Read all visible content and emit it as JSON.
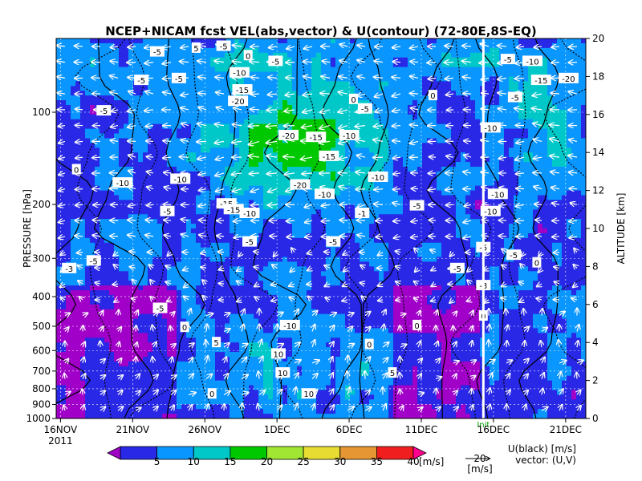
{
  "chart_data": {
    "type": "heatmap",
    "title": "NCEP+NICAM  fcst  VEL(abs,vector) & U(contour)   (72-80E,8S-EQ)",
    "ylabel_left": "PRESSURE [hPa]",
    "ylabel_right": "ALTITUDE [km]",
    "yticks_left": [
      {
        "label": "100",
        "p": 100
      },
      {
        "label": "200",
        "p": 200
      },
      {
        "label": "300",
        "p": 300
      },
      {
        "label": "400",
        "p": 400
      },
      {
        "label": "500",
        "p": 500
      },
      {
        "label": "600",
        "p": 600
      },
      {
        "label": "700",
        "p": 700
      },
      {
        "label": "800",
        "p": 800
      },
      {
        "label": "900",
        "p": 900
      },
      {
        "label": "1000",
        "p": 1000
      }
    ],
    "yticks_right": [
      {
        "label": "20",
        "km": 20
      },
      {
        "label": "18",
        "km": 18
      },
      {
        "label": "16",
        "km": 16
      },
      {
        "label": "14",
        "km": 14
      },
      {
        "label": "12",
        "km": 12
      },
      {
        "label": "10",
        "km": 10
      },
      {
        "label": "8",
        "km": 8
      },
      {
        "label": "6",
        "km": 6
      },
      {
        "label": "4",
        "km": 4
      },
      {
        "label": "2",
        "km": 2
      },
      {
        "label": "0",
        "km": 0
      }
    ],
    "xticks": [
      {
        "label": "16NOV",
        "day": 0
      },
      {
        "label": "21NOV",
        "day": 5
      },
      {
        "label": "26NOV",
        "day": 10
      },
      {
        "label": "1DEC",
        "day": 15
      },
      {
        "label": "6DEC",
        "day": 20
      },
      {
        "label": "11DEC",
        "day": 25
      },
      {
        "label": "16DEC",
        "day": 30
      },
      {
        "label": "21DEC",
        "day": 35
      }
    ],
    "xyear": "2011",
    "xrange_days": [
      -0.3,
      36.4
    ],
    "yrange_km": [
      0,
      20
    ],
    "grid": true,
    "init_marker": {
      "label": "Init",
      "day": 29.3
    },
    "colorbar": {
      "levels": [
        "5",
        "10",
        "15",
        "20",
        "25",
        "30",
        "35",
        "40"
      ],
      "unit": "[m/s]",
      "colors": [
        "#a000c8",
        "#2828e6",
        "#0a96ff",
        "#00c8c8",
        "#00c800",
        "#a0e632",
        "#e6dc32",
        "#e69632",
        "#f01e1e",
        "#ff0090"
      ]
    },
    "vector_ref": {
      "value": "20",
      "unit": "[m/s]"
    },
    "legend_text": [
      "U(black) [m/s]",
      "vector: (U,V)"
    ],
    "contour_labels": [
      {
        "t": "-5",
        "day": 11.3,
        "km": 19.6
      },
      {
        "t": "-5",
        "day": 6.7,
        "km": 19.3
      },
      {
        "t": "0",
        "day": 13.0,
        "km": 19.1
      },
      {
        "t": "-5",
        "day": 14.9,
        "km": 18.8
      },
      {
        "t": "-10",
        "day": 12.4,
        "km": 18.2
      },
      {
        "t": "-5",
        "day": 5.6,
        "km": 17.8
      },
      {
        "t": "-5",
        "day": 8.2,
        "km": 17.9
      },
      {
        "t": "-20",
        "day": 12.3,
        "km": 16.7
      },
      {
        "t": "0",
        "day": 20.3,
        "km": 16.8
      },
      {
        "t": "-5",
        "day": 21.1,
        "km": 16.3
      },
      {
        "t": "0",
        "day": 25.8,
        "km": 17.0
      },
      {
        "t": "-10",
        "day": 32.7,
        "km": 18.8
      },
      {
        "t": "-15",
        "day": 33.3,
        "km": 17.8
      },
      {
        "t": "-20",
        "day": 35.2,
        "km": 17.9
      },
      {
        "t": "-5",
        "day": 31.0,
        "km": 18.9
      },
      {
        "t": "-5",
        "day": 31.5,
        "km": 16.9
      },
      {
        "t": "-5",
        "day": 3.0,
        "km": 16.2
      },
      {
        "t": "-10",
        "day": 29.8,
        "km": 15.3
      },
      {
        "t": "-20",
        "day": 15.8,
        "km": 14.9
      },
      {
        "t": "-15",
        "day": 17.7,
        "km": 14.8
      },
      {
        "t": "-10",
        "day": 20.0,
        "km": 14.9
      },
      {
        "t": "-15",
        "day": 18.6,
        "km": 13.8
      },
      {
        "t": "-10",
        "day": 8.3,
        "km": 12.6
      },
      {
        "t": "-20",
        "day": 16.6,
        "km": 12.3
      },
      {
        "t": "-10",
        "day": 18.3,
        "km": 11.8
      },
      {
        "t": "-10",
        "day": 22.0,
        "km": 12.7
      },
      {
        "t": "-10",
        "day": 30.3,
        "km": 11.8
      },
      {
        "t": "0",
        "day": 1.1,
        "km": 13.1
      },
      {
        "t": "-10",
        "day": 4.3,
        "km": 12.4
      },
      {
        "t": "-5",
        "day": 7.4,
        "km": 10.9
      },
      {
        "t": "-15",
        "day": 11.5,
        "km": 11.3
      },
      {
        "t": "-10",
        "day": 13.1,
        "km": 10.8
      },
      {
        "t": "-1",
        "day": 20.9,
        "km": 10.8
      },
      {
        "t": "-5",
        "day": 24.7,
        "km": 11.2
      },
      {
        "t": "-10",
        "day": 29.8,
        "km": 10.9
      },
      {
        "t": "-5",
        "day": 13.1,
        "km": 9.3
      },
      {
        "t": "-5",
        "day": 18.9,
        "km": 9.3
      },
      {
        "t": "-5",
        "day": 29.3,
        "km": 9.0
      },
      {
        "t": "-5",
        "day": 31.4,
        "km": 8.6
      },
      {
        "t": "-5",
        "day": 2.3,
        "km": 8.3
      },
      {
        "t": "-3",
        "day": 0.6,
        "km": 7.9
      },
      {
        "t": "-5",
        "day": 27.5,
        "km": 7.9
      },
      {
        "t": "0",
        "day": 33.0,
        "km": 8.2
      },
      {
        "t": "-3",
        "day": 29.3,
        "km": 7.0
      },
      {
        "t": "-5",
        "day": 6.9,
        "km": 5.8
      },
      {
        "t": "0",
        "day": 8.6,
        "km": 4.8
      },
      {
        "t": "0",
        "day": 24.7,
        "km": 4.9
      },
      {
        "t": "0",
        "day": 29.3,
        "km": 5.4
      },
      {
        "t": "5",
        "day": 10.8,
        "km": 4.0
      },
      {
        "t": "-10",
        "day": 15.9,
        "km": 4.9
      },
      {
        "t": "10",
        "day": 15.1,
        "km": 3.4
      },
      {
        "t": "10",
        "day": 15.4,
        "km": 2.4
      },
      {
        "t": "5",
        "day": 23.0,
        "km": 2.4
      },
      {
        "t": "10",
        "day": 17.2,
        "km": 1.3
      },
      {
        "t": "0",
        "day": 21.4,
        "km": 3.9
      },
      {
        "t": "0",
        "day": 10.5,
        "km": 1.3
      },
      {
        "t": "5",
        "day": 9.4,
        "km": 19.5
      },
      {
        "t": "-15",
        "day": 12.6,
        "km": 17.3
      },
      {
        "t": "-15",
        "day": 12.0,
        "km": 11.0
      }
    ]
  }
}
